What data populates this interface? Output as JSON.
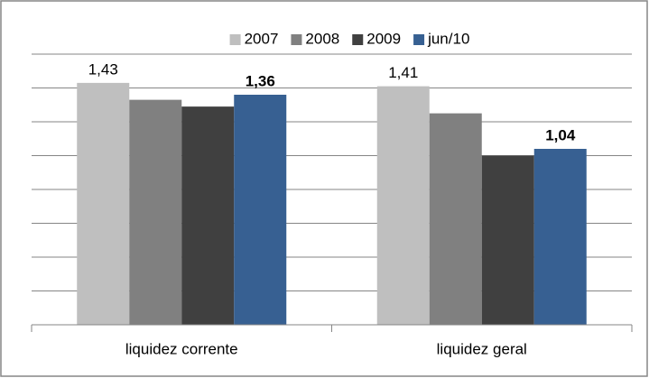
{
  "chart_data": {
    "type": "bar",
    "categories": [
      "liquidez corrente",
      "liquidez geral"
    ],
    "series": [
      {
        "name": "2007",
        "color": "#bfbfbf",
        "values": [
          1.43,
          1.41
        ],
        "value_labels": [
          "1,43",
          "1,41"
        ]
      },
      {
        "name": "2008",
        "color": "#808080",
        "values": [
          1.33,
          1.25
        ]
      },
      {
        "name": "2009",
        "color": "#404040",
        "values": [
          1.29,
          1.0
        ]
      },
      {
        "name": "jun/10",
        "color": "#376092",
        "values": [
          1.36,
          1.04
        ],
        "value_labels": [
          "1,36",
          "1,04"
        ]
      }
    ],
    "ylim": [
      0,
      1.6
    ],
    "yticks": [
      0,
      0.2,
      0.4,
      0.6,
      0.8,
      1.0,
      1.2,
      1.4,
      1.6
    ],
    "grid": true,
    "legend": "top"
  }
}
